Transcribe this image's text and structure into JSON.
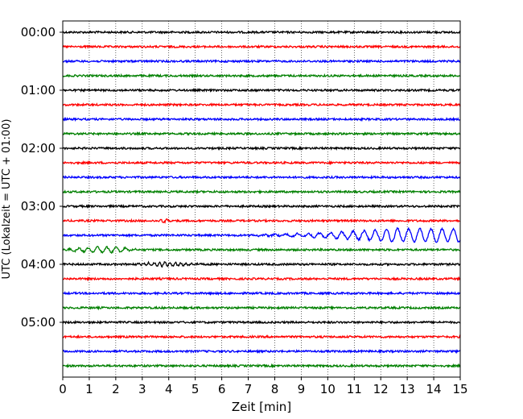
{
  "chart_data": {
    "type": "line",
    "title": "",
    "xlabel": "Zeit  [min]",
    "ylabel": "UTC (Lokalzeit = UTC + 01:00)",
    "xlim": [
      0,
      15
    ],
    "x_ticks": [
      "0",
      "1",
      "2",
      "3",
      "4",
      "5",
      "6",
      "7",
      "8",
      "9",
      "10",
      "11",
      "12",
      "13",
      "14",
      "15"
    ],
    "y_tick_labels": [
      "00:00",
      "01:00",
      "02:00",
      "03:00",
      "04:00",
      "05:00"
    ],
    "grid": "vertical dotted lines at each minute",
    "traces_per_hour": 4,
    "trace_interval_min": 15,
    "colors": [
      "#000000",
      "#ff0000",
      "#0000ff",
      "#008000"
    ],
    "traces": [
      {
        "label": "00:00",
        "event": null
      },
      {
        "label": "00:15",
        "event": null
      },
      {
        "label": "00:30",
        "event": null
      },
      {
        "label": "00:45",
        "event": null
      },
      {
        "label": "01:00",
        "event": null
      },
      {
        "label": "01:15",
        "event": null
      },
      {
        "label": "01:30",
        "event": null
      },
      {
        "label": "01:45",
        "event": null
      },
      {
        "label": "02:00",
        "event": null
      },
      {
        "label": "02:15",
        "event": null
      },
      {
        "label": "02:30",
        "event": null
      },
      {
        "label": "02:45",
        "event": null
      },
      {
        "label": "03:00",
        "event": null
      },
      {
        "label": "03:15",
        "event": {
          "start_min": 3.5,
          "end_min": 4.2,
          "amplitude": 0.18,
          "period_min": 0.25
        }
      },
      {
        "label": "03:30",
        "event": {
          "start_min": 5.6,
          "end_min": 15.0,
          "amplitude": 0.75,
          "period_min": 0.42,
          "peak_min": 12.5
        }
      },
      {
        "label": "03:45",
        "event": {
          "start_min": 0.0,
          "end_min": 3.0,
          "amplitude": 0.3,
          "period_min": 0.35
        }
      },
      {
        "label": "04:00",
        "event": {
          "start_min": 2.5,
          "end_min": 5.2,
          "amplitude": 0.22,
          "period_min": 0.2
        }
      },
      {
        "label": "04:15",
        "event": null
      },
      {
        "label": "04:30",
        "event": null
      },
      {
        "label": "04:45",
        "event": null
      },
      {
        "label": "05:00",
        "event": null
      },
      {
        "label": "05:15",
        "event": null
      },
      {
        "label": "05:30",
        "event": null
      },
      {
        "label": "05:45",
        "event": null
      }
    ]
  }
}
